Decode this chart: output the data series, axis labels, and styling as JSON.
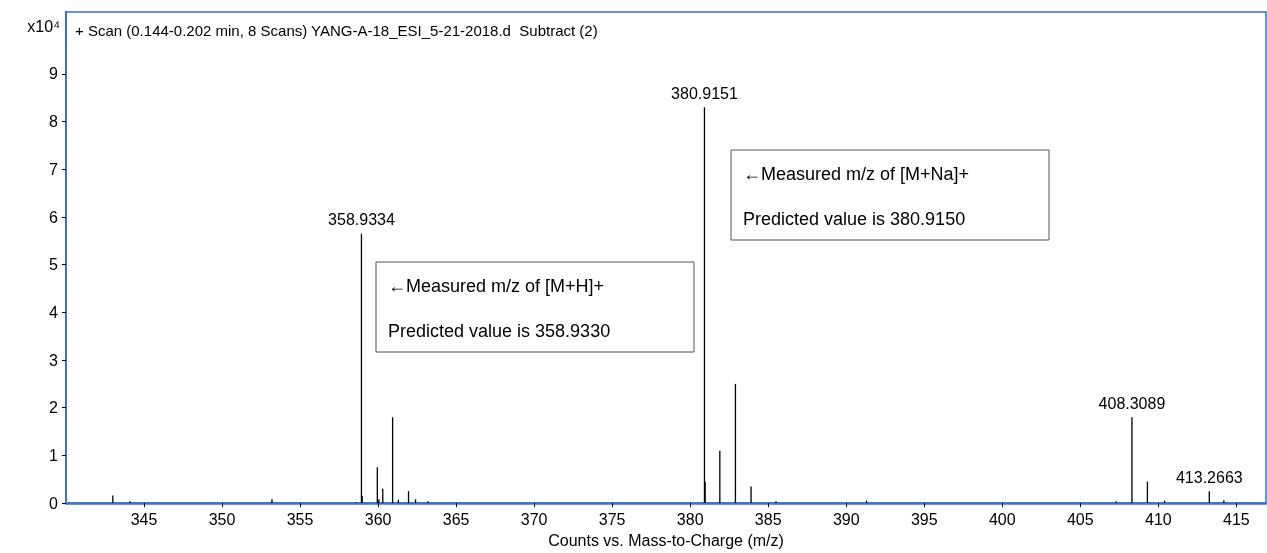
{
  "chart_data": {
    "type": "bar",
    "title": "+ Scan (0.144-0.202 min, 8 Scans) YANG-A-18_ESI_5-21-2018.d  Subtract (2)",
    "xlabel": "Counts vs. Mass-to-Charge (m/z)",
    "ylabel": "x10⁴",
    "x": [
      343.0,
      344.1,
      353.2,
      358.6,
      358.9334,
      358.98,
      359.95,
      360.05,
      360.3,
      360.93,
      361.3,
      361.95,
      362.4,
      363.2,
      380.9151,
      380.96,
      381.9,
      382.9,
      383.9,
      385.5,
      391.3,
      407.3,
      408.3089,
      409.3,
      410.4,
      413.2663,
      414.2
    ],
    "series": [
      {
        "color": "#000000",
        "values": [
          0.16,
          0.04,
          0.08,
          0.02,
          5.65,
          0.15,
          0.75,
          0.08,
          0.3,
          1.8,
          0.07,
          0.25,
          0.08,
          0.04,
          8.3,
          0.45,
          1.1,
          2.5,
          0.35,
          0.04,
          0.05,
          0.04,
          1.8,
          0.45,
          0.05,
          0.25,
          0.06
        ]
      }
    ],
    "xlim": [
      340,
      416.9
    ],
    "xticks": [
      345,
      350,
      355,
      360,
      365,
      370,
      375,
      380,
      385,
      390,
      395,
      400,
      405,
      410,
      415
    ],
    "ylim": [
      0,
      10.3
    ],
    "yticks": [
      0,
      1,
      2,
      3,
      4,
      5,
      6,
      7,
      8,
      9
    ],
    "grid": false,
    "annotations": [
      {
        "text": "358.9334",
        "x": 358.9334,
        "y": 5.65
      },
      {
        "text": "380.9151",
        "x": 380.9151,
        "y": 8.3
      },
      {
        "text": "408.3089",
        "x": 408.3089,
        "y": 1.8
      },
      {
        "text": "413.2663",
        "x": 413.2663,
        "y": 0.25
      },
      "←Measured m/z of [M+H]+",
      "Predicted value is 358.9330",
      "←Measured m/z of [M+Na]+",
      "Predicted value is 380.9150"
    ]
  }
}
